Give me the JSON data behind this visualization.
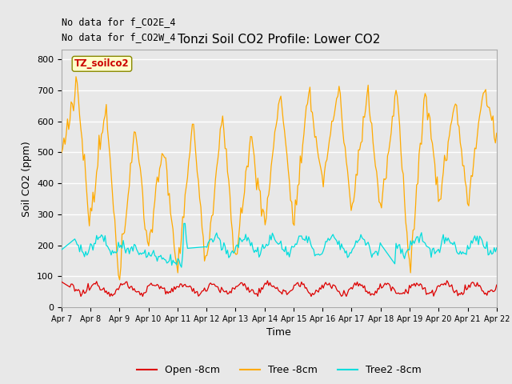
{
  "title": "Tonzi Soil CO2 Profile: Lower CO2",
  "xlabel": "Time",
  "ylabel": "Soil CO2 (ppm)",
  "ylim": [
    0,
    830
  ],
  "yticks": [
    0,
    100,
    200,
    300,
    400,
    500,
    600,
    700,
    800
  ],
  "annotations": [
    "No data for f_CO2E_4",
    "No data for f_CO2W_4"
  ],
  "legend_label": "TZ_soilco2",
  "legend_label_color": "#cc0000",
  "legend_box_facecolor": "#ffffcc",
  "legend_box_edgecolor": "#888800",
  "background_color": "#e8e8e8",
  "fig_background_color": "#e8e8e8",
  "grid_color": "#ffffff",
  "series_colors": {
    "open": "#dd0000",
    "tree": "#ffaa00",
    "tree2": "#00dddd"
  },
  "series_labels": {
    "open": "Open -8cm",
    "tree": "Tree -8cm",
    "tree2": "Tree2 -8cm"
  },
  "xtick_labels": [
    "Apr 7",
    "Apr 8",
    "Apr 9",
    "Apr 10",
    "Apr 11",
    "Apr 12",
    "Apr 13",
    "Apr 14",
    "Apr 15",
    "Apr 16",
    "Apr 17",
    "Apr 18",
    "Apr 19",
    "Apr 20",
    "Apr 21",
    "Apr 22"
  ]
}
